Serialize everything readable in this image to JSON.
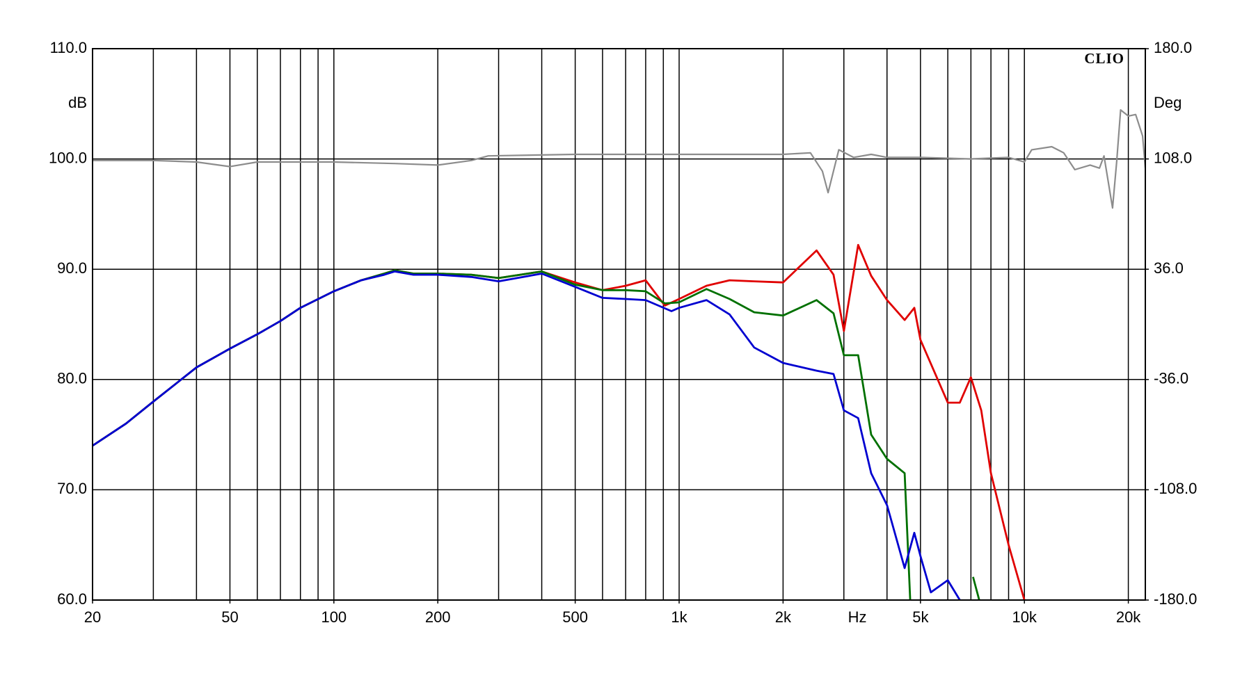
{
  "chart_data": {
    "type": "line",
    "watermark": "CLIO",
    "ylabel": "dB",
    "y2label": "Deg",
    "xlabel": "Hz",
    "xscale": "log",
    "xlim": [
      20,
      22400
    ],
    "xticks": [
      20,
      50,
      100,
      200,
      500,
      {
        "value": 1000,
        "label": "1k"
      },
      {
        "value": 2000,
        "label": "2k"
      },
      {
        "value": 5000,
        "label": "5k"
      },
      {
        "value": 10000,
        "label": "10k"
      },
      {
        "value": 20000,
        "label": "20k"
      }
    ],
    "xgrid": [
      20,
      30,
      40,
      50,
      60,
      70,
      80,
      90,
      100,
      200,
      300,
      400,
      500,
      600,
      700,
      800,
      900,
      1000,
      2000,
      3000,
      4000,
      5000,
      6000,
      7000,
      8000,
      9000,
      10000,
      20000
    ],
    "ylim": [
      60,
      110
    ],
    "yticks": [
      {
        "value": 60,
        "label": "60.0"
      },
      {
        "value": 70,
        "label": "70.0"
      },
      {
        "value": 80,
        "label": "80.0"
      },
      {
        "value": 90,
        "label": "90.0"
      },
      {
        "value": 100,
        "label": "100.0"
      },
      {
        "value": 110,
        "label": "110.0"
      }
    ],
    "y2lim": [
      -180,
      180
    ],
    "y2ticks": [
      {
        "value": -180,
        "label": "-180.0"
      },
      {
        "value": -108,
        "label": "-108.0"
      },
      {
        "value": -36,
        "label": "-36.0"
      },
      {
        "value": 36,
        "label": "36.0"
      },
      {
        "value": 108,
        "label": "108.0"
      },
      {
        "value": 180,
        "label": "180.0"
      }
    ],
    "grid": true,
    "series": [
      {
        "color": "#e00000",
        "x": [
          20,
          25,
          30,
          40,
          50,
          60,
          70,
          80,
          100,
          120,
          140,
          150,
          170,
          200,
          250,
          300,
          400,
          500,
          600,
          700,
          800,
          909,
          1000,
          1200,
          1400,
          1650,
          2000,
          2500,
          2800,
          3000,
          3300,
          3600,
          4000,
          4500,
          4800,
          5000,
          6000,
          6500,
          7000,
          7500,
          8000,
          9000,
          10000
        ],
        "values": [
          74.0,
          76.0,
          78.0,
          81.1,
          82.8,
          84.1,
          85.3,
          86.5,
          88.0,
          89.0,
          89.6,
          89.9,
          89.6,
          89.6,
          89.5,
          89.2,
          89.8,
          88.8,
          88.1,
          88.5,
          89.0,
          86.7,
          87.3,
          88.5,
          89.0,
          88.9,
          88.8,
          91.7,
          89.5,
          84.4,
          92.2,
          89.4,
          87.2,
          85.4,
          86.5,
          83.6,
          77.9,
          77.9,
          80.2,
          77.2,
          71.5,
          65.0,
          60.0
        ]
      },
      {
        "color": "#007000",
        "x": [
          20,
          25,
          30,
          40,
          50,
          60,
          70,
          80,
          100,
          120,
          140,
          150,
          170,
          200,
          250,
          300,
          400,
          500,
          600,
          700,
          800,
          909,
          1000,
          1200,
          1400,
          1650,
          2000,
          2500,
          2800,
          3000,
          3300,
          3600,
          4000,
          4500,
          4670,
          6900,
          7100,
          7400
        ],
        "values": [
          74.0,
          76.0,
          78.0,
          81.1,
          82.8,
          84.1,
          85.3,
          86.5,
          88.0,
          89.0,
          89.6,
          89.9,
          89.6,
          89.6,
          89.5,
          89.2,
          89.8,
          88.6,
          88.1,
          88.1,
          88.0,
          86.9,
          87.0,
          88.2,
          87.3,
          86.1,
          85.8,
          87.2,
          86.0,
          82.2,
          82.2,
          75.0,
          72.8,
          71.5,
          60.0,
          null,
          62.1,
          60.0
        ]
      },
      {
        "color": "#0000d0",
        "x": [
          20,
          25,
          30,
          40,
          50,
          60,
          70,
          80,
          100,
          120,
          140,
          150,
          170,
          200,
          250,
          300,
          400,
          500,
          600,
          700,
          800,
          950,
          1000,
          1200,
          1400,
          1650,
          2000,
          2500,
          2800,
          3000,
          3300,
          3600,
          4000,
          4500,
          4800,
          5000,
          5360,
          6000,
          6500
        ],
        "values": [
          74.0,
          76.0,
          78.0,
          81.1,
          82.8,
          84.1,
          85.3,
          86.5,
          88.0,
          89.0,
          89.5,
          89.8,
          89.5,
          89.5,
          89.3,
          88.9,
          89.6,
          88.4,
          87.4,
          87.3,
          87.2,
          86.2,
          86.5,
          87.2,
          85.9,
          82.9,
          81.5,
          80.8,
          80.5,
          77.2,
          76.5,
          71.5,
          68.6,
          62.9,
          66.1,
          64.0,
          60.7,
          61.8,
          60.0
        ]
      },
      {
        "color": "#8c8c8c",
        "axis": "y2",
        "x": [
          20,
          30,
          40,
          50,
          60,
          100,
          150,
          200,
          250,
          280,
          500,
          1000,
          2000,
          2400,
          2600,
          2700,
          2900,
          3200,
          3600,
          4000,
          5000,
          7000,
          9000,
          10000,
          10500,
          12000,
          13000,
          14000,
          15500,
          16500,
          17000,
          18000,
          18500,
          19000,
          20000,
          21000,
          22000,
          22400
        ],
        "values": [
          107,
          107,
          106,
          103,
          106,
          106,
          105,
          104,
          107,
          110,
          111,
          111,
          111,
          112,
          100,
          86,
          114,
          109,
          111,
          109,
          109,
          108,
          109,
          106,
          114,
          116,
          112,
          101,
          104,
          102,
          110,
          76,
          106,
          140,
          136,
          137,
          123,
          102
        ]
      }
    ]
  }
}
